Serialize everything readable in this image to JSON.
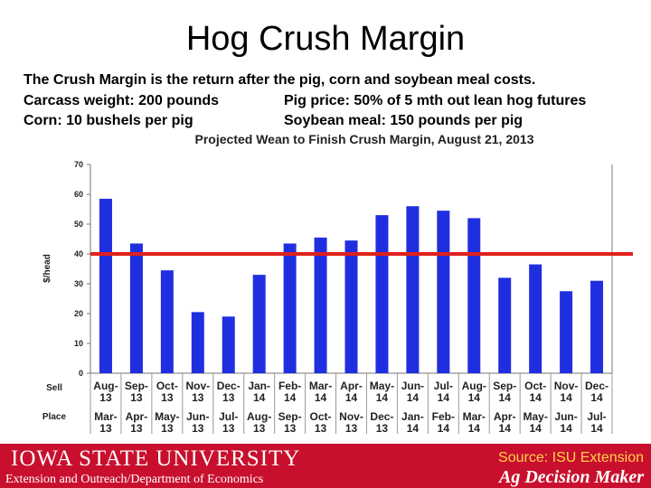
{
  "slide": {
    "title": "Hog Crush Margin",
    "intro": {
      "line1": "The Crush Margin is the return after the pig, corn and soybean meal costs.",
      "line2_left": "Carcass weight:  200 pounds",
      "line2_right": "Pig price:  50% of 5 mth out lean hog futures",
      "line3_left": "Corn:  10 bushels per pig",
      "line3_right": "Soybean meal:  150 pounds per pig"
    }
  },
  "chart_data": {
    "type": "bar",
    "title": "Projected Wean to Finish Crush Margin, August 21, 2013",
    "ylabel": "$/head",
    "ylim": [
      0,
      70
    ],
    "yticks": [
      0,
      10,
      20,
      30,
      40,
      50,
      60,
      70
    ],
    "row_labels": {
      "sell": "Sell",
      "place": "Place"
    },
    "categories": [
      {
        "sell": [
          "Aug-",
          "13"
        ],
        "place": [
          "Mar-",
          "13"
        ]
      },
      {
        "sell": [
          "Sep-",
          "13"
        ],
        "place": [
          "Apr-",
          "13"
        ]
      },
      {
        "sell": [
          "Oct-",
          "13"
        ],
        "place": [
          "May-",
          "13"
        ]
      },
      {
        "sell": [
          "Nov-",
          "13"
        ],
        "place": [
          "Jun-",
          "13"
        ]
      },
      {
        "sell": [
          "Dec-",
          "13"
        ],
        "place": [
          "Jul-",
          "13"
        ]
      },
      {
        "sell": [
          "Jan-",
          "14"
        ],
        "place": [
          "Aug-",
          "13"
        ]
      },
      {
        "sell": [
          "Feb-",
          "14"
        ],
        "place": [
          "Sep-",
          "13"
        ]
      },
      {
        "sell": [
          "Mar-",
          "14"
        ],
        "place": [
          "Oct-",
          "13"
        ]
      },
      {
        "sell": [
          "Apr-",
          "14"
        ],
        "place": [
          "Nov-",
          "13"
        ]
      },
      {
        "sell": [
          "May-",
          "14"
        ],
        "place": [
          "Dec-",
          "13"
        ]
      },
      {
        "sell": [
          "Jun-",
          "14"
        ],
        "place": [
          "Jan-",
          "14"
        ]
      },
      {
        "sell": [
          "Jul-",
          "14"
        ],
        "place": [
          "Feb-",
          "14"
        ]
      },
      {
        "sell": [
          "Aug-",
          "14"
        ],
        "place": [
          "Mar-",
          "14"
        ]
      },
      {
        "sell": [
          "Sep-",
          "14"
        ],
        "place": [
          "Apr-",
          "14"
        ]
      },
      {
        "sell": [
          "Oct-",
          "14"
        ],
        "place": [
          "May-",
          "14"
        ]
      },
      {
        "sell": [
          "Nov-",
          "14"
        ],
        "place": [
          "Jun-",
          "14"
        ]
      },
      {
        "sell": [
          "Dec-",
          "14"
        ],
        "place": [
          "Jul-",
          "14"
        ]
      }
    ],
    "values": [
      58.5,
      43.5,
      34.5,
      20.5,
      19,
      33,
      43.5,
      45.5,
      44.5,
      53,
      56,
      54.5,
      52,
      32,
      36.5,
      27.5,
      31
    ],
    "reference_line": 40,
    "grid": false,
    "colors": {
      "bar": "#1f2fe0",
      "reference_line": "#e0201a"
    }
  },
  "footer": {
    "university": "IOWA STATE UNIVERSITY",
    "department": "Extension and Outreach/Department of Economics",
    "source": "Source: ISU Extension",
    "brand": "Ag Decision Maker",
    "color": "#c8102e"
  }
}
